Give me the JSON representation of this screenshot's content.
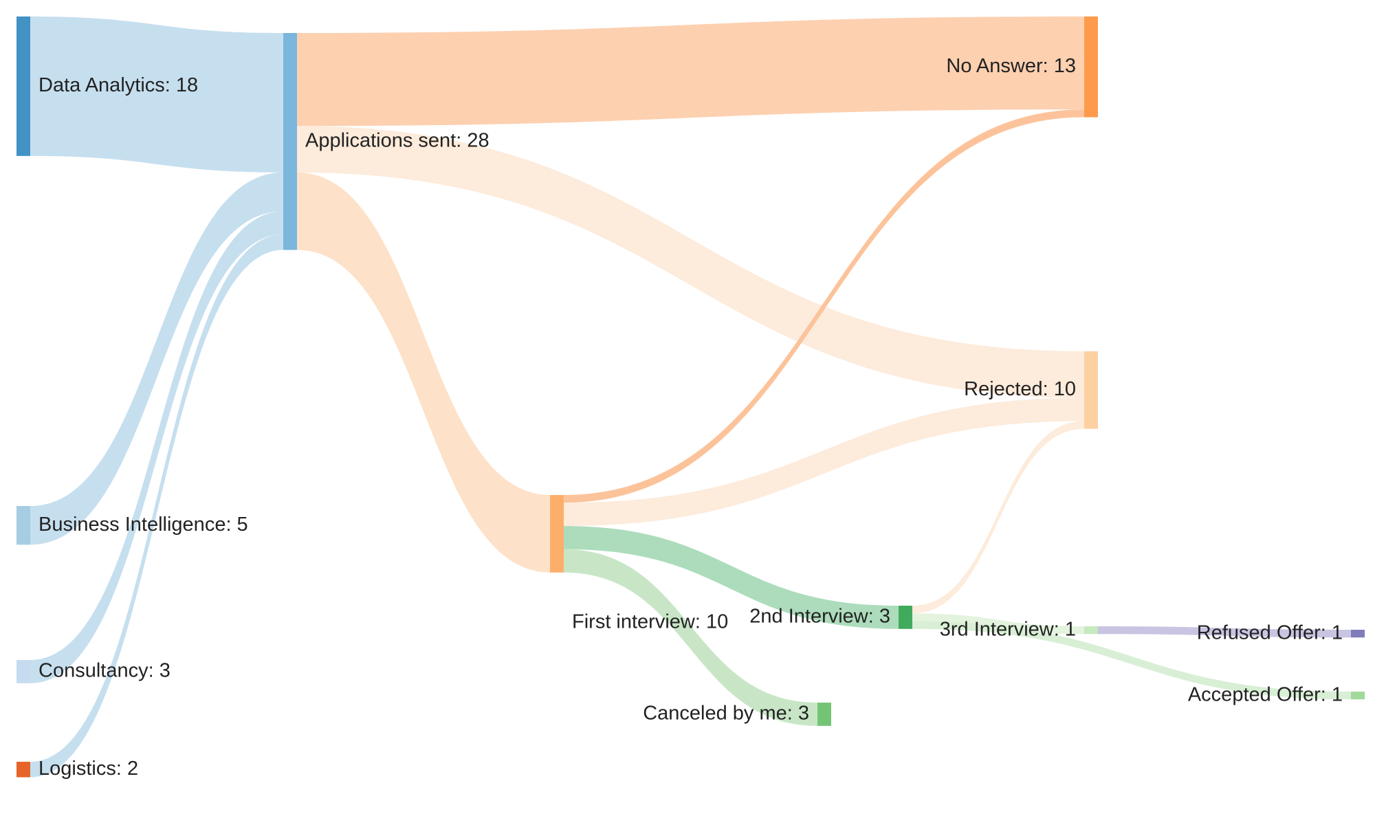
{
  "chart_data": {
    "type": "sankey",
    "nodes": [
      {
        "id": "data-analytics",
        "label": "Data Analytics: 18",
        "name": "Data Analytics",
        "value": 18,
        "color": "#4292c6"
      },
      {
        "id": "business-intelligence",
        "label": "Business Intelligence: 5",
        "name": "Business Intelligence",
        "value": 5,
        "color": "#a6cde2"
      },
      {
        "id": "consultancy",
        "label": "Consultancy: 3",
        "name": "Consultancy",
        "value": 3,
        "color": "#c6dbef"
      },
      {
        "id": "logistics",
        "label": "Logistics: 2",
        "name": "Logistics",
        "value": 2,
        "color": "#e6632a"
      },
      {
        "id": "applications-sent",
        "label": "Applications sent: 28",
        "name": "Applications sent",
        "value": 28,
        "color": "#7bb6dc"
      },
      {
        "id": "first-interview",
        "label": "First interview: 10",
        "name": "First interview",
        "value": 10,
        "color": "#fdae6b"
      },
      {
        "id": "canceled-by-me",
        "label": "Canceled by me: 3",
        "name": "Canceled by me",
        "value": 3,
        "color": "#74c476"
      },
      {
        "id": "second-interview",
        "label": "2nd Interview: 3",
        "name": "2nd Interview",
        "value": 3,
        "color": "#41ab5d"
      },
      {
        "id": "no-answer",
        "label": "No Answer: 13",
        "name": "No Answer",
        "value": 13,
        "color": "#fd9a4b"
      },
      {
        "id": "rejected",
        "label": "Rejected: 10",
        "name": "Rejected",
        "value": 10,
        "color": "#fdd0a2"
      },
      {
        "id": "third-interview",
        "label": "3rd Interview: 1",
        "name": "3rd Interview",
        "value": 1,
        "color": "#c7e9c0"
      },
      {
        "id": "refused-offer",
        "label": "Refused Offer: 1",
        "name": "Refused Offer",
        "value": 1,
        "color": "#807dba"
      },
      {
        "id": "accepted-offer",
        "label": "Accepted Offer: 1",
        "name": "Accepted Offer",
        "value": 1,
        "color": "#a1d99b"
      }
    ],
    "links": [
      {
        "source": "data-analytics",
        "target": "applications-sent",
        "value": 18,
        "color": "#c6dfef"
      },
      {
        "source": "business-intelligence",
        "target": "applications-sent",
        "value": 5,
        "color": "#c6dfef"
      },
      {
        "source": "consultancy",
        "target": "applications-sent",
        "value": 3,
        "color": "#c6dfef"
      },
      {
        "source": "logistics",
        "target": "applications-sent",
        "value": 2,
        "color": "#c6dfef"
      },
      {
        "source": "applications-sent",
        "target": "no-answer",
        "value": 12,
        "color": "#fdd0b0"
      },
      {
        "source": "applications-sent",
        "target": "rejected",
        "value": 6,
        "color": "#fdebdb"
      },
      {
        "source": "applications-sent",
        "target": "first-interview",
        "value": 10,
        "color": "#fde1c8"
      },
      {
        "source": "first-interview",
        "target": "no-answer",
        "value": 1,
        "color": "#fcc39a"
      },
      {
        "source": "first-interview",
        "target": "rejected",
        "value": 3,
        "color": "#fdebdb"
      },
      {
        "source": "first-interview",
        "target": "second-interview",
        "value": 3,
        "color": "#addcbc"
      },
      {
        "source": "first-interview",
        "target": "canceled-by-me",
        "value": 3,
        "color": "#c8e6c6"
      },
      {
        "source": "second-interview",
        "target": "rejected",
        "value": 1,
        "color": "#fdebdb"
      },
      {
        "source": "second-interview",
        "target": "third-interview",
        "value": 1,
        "color": "#e3f3de"
      },
      {
        "source": "second-interview",
        "target": "accepted-offer",
        "value": 1,
        "color": "#d8efd5"
      },
      {
        "source": "third-interview",
        "target": "refused-offer",
        "value": 1,
        "color": "#c8c4e2"
      }
    ]
  }
}
